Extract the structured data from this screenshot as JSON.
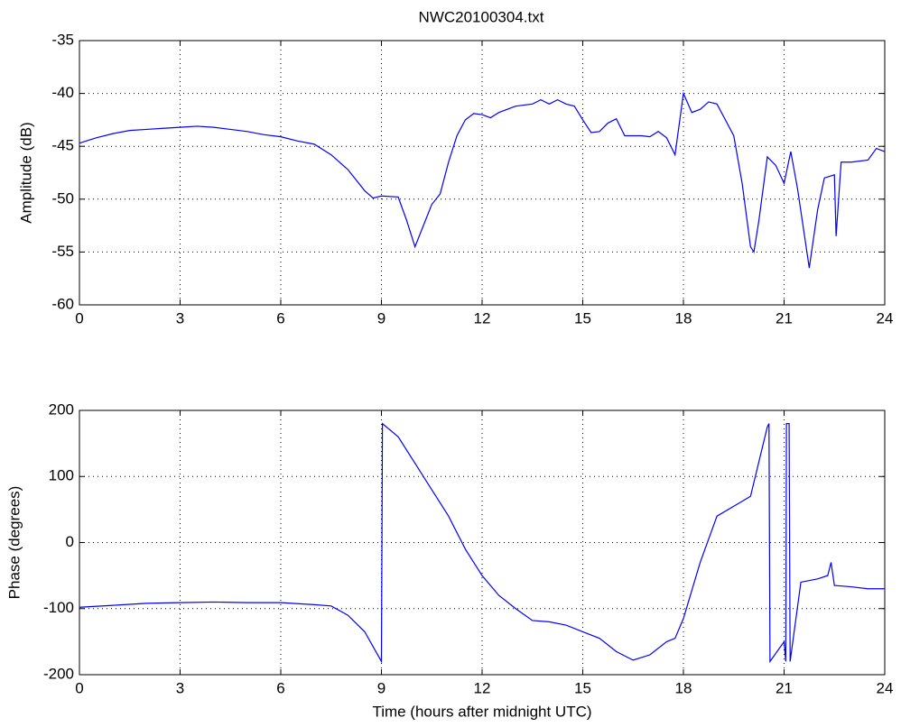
{
  "chart_data": [
    {
      "type": "line",
      "title": "NWC20100304.txt",
      "ylabel": "Amplitude (dB)",
      "color": "#0000ff",
      "grid": true,
      "xlim": [
        0,
        24
      ],
      "xticks": [
        0,
        3,
        6,
        9,
        12,
        15,
        18,
        21,
        24
      ],
      "ylim": [
        -60,
        -35
      ],
      "yticks": [
        -60,
        -55,
        -50,
        -45,
        -40,
        -35
      ],
      "x": [
        0,
        0.5,
        1,
        1.5,
        2,
        2.5,
        3,
        3.5,
        4,
        4.5,
        5,
        5.5,
        6,
        6.5,
        7,
        7.5,
        8,
        8.5,
        8.75,
        9,
        9.5,
        9.75,
        10,
        10.25,
        10.5,
        10.75,
        11,
        11.25,
        11.5,
        11.75,
        12,
        12.25,
        12.5,
        13,
        13.5,
        13.75,
        14,
        14.25,
        14.5,
        14.75,
        15,
        15.25,
        15.5,
        15.75,
        16,
        16.25,
        16.75,
        17,
        17.25,
        17.5,
        17.75,
        18,
        18.25,
        18.5,
        18.75,
        19,
        19.5,
        19.75,
        20,
        20.1,
        20.25,
        20.5,
        20.75,
        21,
        21.2,
        21.4,
        21.75,
        22,
        22.2,
        22.5,
        22.55,
        22.7,
        23,
        23.5,
        23.75,
        24
      ],
      "values": [
        -44.7,
        -44.2,
        -43.8,
        -43.5,
        -43.4,
        -43.3,
        -43.2,
        -43.1,
        -43.2,
        -43.4,
        -43.6,
        -43.9,
        -44.1,
        -44.5,
        -44.8,
        -45.8,
        -47.2,
        -49.2,
        -49.9,
        -49.7,
        -49.8,
        -52,
        -54.5,
        -52.5,
        -50.5,
        -49.5,
        -46.5,
        -44,
        -42.5,
        -41.9,
        -42,
        -42.3,
        -41.8,
        -41.2,
        -41,
        -40.6,
        -41,
        -40.6,
        -41,
        -41.2,
        -42.5,
        -43.7,
        -43.6,
        -42.8,
        -42.4,
        -44,
        -44,
        -44.1,
        -43.6,
        -44.2,
        -45.8,
        -40,
        -41.8,
        -41.5,
        -40.8,
        -41,
        -44,
        -48.5,
        -54.5,
        -55,
        -52,
        -46,
        -46.8,
        -48.5,
        -45.5,
        -49,
        -56.5,
        -51,
        -48,
        -47.7,
        -53.5,
        -46.5,
        -46.5,
        -46.3,
        -45.2,
        -45.5
      ]
    },
    {
      "type": "line",
      "ylabel": "Phase (degrees)",
      "xlabel": "Time (hours after midnight UTC)",
      "color": "#0000ff",
      "grid": true,
      "xlim": [
        0,
        24
      ],
      "xticks": [
        0,
        3,
        6,
        9,
        12,
        15,
        18,
        21,
        24
      ],
      "ylim": [
        -200,
        200
      ],
      "yticks": [
        -200,
        -100,
        0,
        100,
        200
      ],
      "x": [
        0,
        1,
        2,
        3,
        4,
        5,
        6,
        7,
        7.5,
        8,
        8.5,
        9,
        9.03,
        9.5,
        10,
        10.5,
        11,
        11.5,
        12,
        12.5,
        13,
        13.5,
        14,
        14.5,
        15,
        15.5,
        16,
        16.5,
        17,
        17.5,
        17.75,
        18,
        18.5,
        19,
        19.5,
        20,
        20.5,
        20.55,
        20.58,
        21,
        21.05,
        21.07,
        21.15,
        21.18,
        21.5,
        22,
        22.3,
        22.4,
        22.5,
        23,
        23.5,
        24
      ],
      "values": [
        -98,
        -95,
        -92,
        -91,
        -90,
        -91,
        -91,
        -94,
        -96,
        -110,
        -135,
        -180,
        180,
        160,
        120,
        80,
        40,
        -10,
        -50,
        -80,
        -100,
        -118,
        -120,
        -125,
        -135,
        -145,
        -165,
        -178,
        -170,
        -150,
        -145,
        -115,
        -30,
        40,
        55,
        70,
        175,
        180,
        -180,
        -150,
        -180,
        180,
        180,
        -180,
        -60,
        -55,
        -50,
        -30,
        -65,
        -67,
        -70,
        -70
      ]
    }
  ]
}
